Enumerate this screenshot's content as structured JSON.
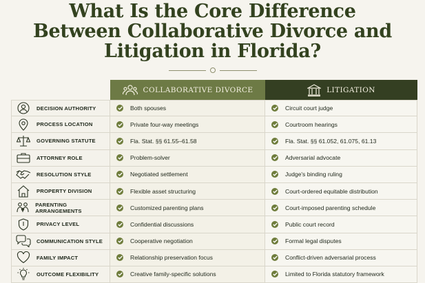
{
  "title": {
    "line1": "What Is the Core Difference",
    "line2": "Between Collaborative Divorce and",
    "line3": "Litigation in Florida?"
  },
  "columns": {
    "collaborative": "COLLABORATIVE DIVORCE",
    "litigation": "LITIGATION"
  },
  "rows": [
    {
      "label": "DECISION AUTHORITY",
      "icon": "person-icon",
      "collaborative": "Both spouses",
      "litigation": "Circuit court judge"
    },
    {
      "label": "PROCESS LOCATION",
      "icon": "location-pin-icon",
      "collaborative": "Private four-way meetings",
      "litigation": "Courtroom hearings"
    },
    {
      "label": "GOVERNING STATUTE",
      "icon": "scales-icon",
      "collaborative": "Fla. Stat. §§ 61.55–61.58",
      "litigation": "Fla. Stat. §§ 61.052, 61.075, 61.13"
    },
    {
      "label": "ATTORNEY ROLE",
      "icon": "briefcase-icon",
      "collaborative": "Problem-solver",
      "litigation": "Adversarial advocate"
    },
    {
      "label": "RESOLUTION STYLE",
      "icon": "handshake-icon",
      "collaborative": "Negotiated settlement",
      "litigation": "Judge's binding ruling"
    },
    {
      "label": "PROPERTY DIVISION",
      "icon": "house-icon",
      "collaborative": "Flexible asset structuring",
      "litigation": "Court-ordered equitable distribution"
    },
    {
      "label": "PARENTING ARRANGEMENTS",
      "icon": "family-icon",
      "collaborative": "Customized parenting plans",
      "litigation": "Court-imposed parenting schedule"
    },
    {
      "label": "PRIVACY LEVEL",
      "icon": "shield-icon",
      "collaborative": "Confidential discussions",
      "litigation": "Public court record"
    },
    {
      "label": "COMMUNICATION STYLE",
      "icon": "speech-bubbles-icon",
      "collaborative": "Cooperative negotiation",
      "litigation": "Formal legal disputes"
    },
    {
      "label": "FAMILY IMPACT",
      "icon": "heart-icon",
      "collaborative": "Relationship preservation focus",
      "litigation": "Conflict-driven adversarial process"
    },
    {
      "label": "OUTCOME FLEXIBILITY",
      "icon": "lightbulb-icon",
      "collaborative": "Creative family-specific solutions",
      "litigation": "Limited to Florida statutory framework"
    }
  ],
  "colors": {
    "title": "#33421f",
    "collab_header": "#6d7a45",
    "litig_header": "#343f22",
    "check": "#6f7d3c"
  }
}
